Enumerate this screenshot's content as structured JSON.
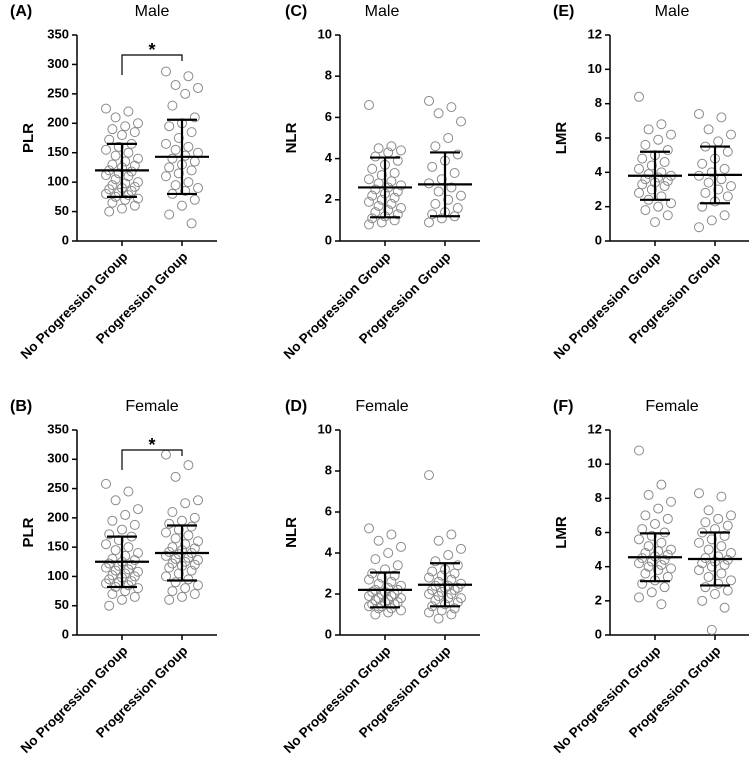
{
  "chart_data": [
    {
      "type": "strip",
      "panel_label": "(A)",
      "title": "Male",
      "y_label": "PLR",
      "annotation": "*",
      "categories": [
        "No Progression Group",
        "Progression Group"
      ],
      "ylim": [
        0,
        350
      ],
      "yticks": [
        0,
        50,
        100,
        150,
        200,
        250,
        300,
        350
      ],
      "groups": [
        {
          "mean": 120,
          "sd": 45,
          "values": [
            225,
            220,
            210,
            200,
            195,
            190,
            185,
            180,
            172,
            165,
            160,
            155,
            150,
            145,
            140,
            135,
            130,
            128,
            125,
            120,
            118,
            115,
            112,
            110,
            105,
            100,
            98,
            95,
            92,
            90,
            88,
            85,
            82,
            80,
            78,
            75,
            72,
            70,
            65,
            60,
            55,
            50
          ]
        },
        {
          "mean": 143,
          "sd": 63,
          "values": [
            288,
            280,
            265,
            260,
            250,
            230,
            210,
            200,
            195,
            185,
            175,
            165,
            160,
            155,
            150,
            145,
            140,
            135,
            130,
            125,
            120,
            115,
            110,
            100,
            95,
            90,
            85,
            80,
            70,
            60,
            45,
            30
          ]
        }
      ]
    },
    {
      "type": "strip",
      "panel_label": "(C)",
      "title": "Male",
      "y_label": "NLR",
      "categories": [
        "No Progression Group",
        "Progression Group"
      ],
      "ylim": [
        0,
        10
      ],
      "yticks": [
        0,
        2,
        4,
        6,
        8,
        10
      ],
      "groups": [
        {
          "mean": 2.6,
          "sd": 1.45,
          "values": [
            6.6,
            4.6,
            4.5,
            4.4,
            4.3,
            4.1,
            3.9,
            3.7,
            3.5,
            3.3,
            3.2,
            3.0,
            2.9,
            2.8,
            2.7,
            2.6,
            2.5,
            2.4,
            2.3,
            2.2,
            2.1,
            2.0,
            1.9,
            1.8,
            1.7,
            1.6,
            1.5,
            1.4,
            1.3,
            1.2,
            1.1,
            1.0,
            0.9,
            0.8
          ]
        },
        {
          "mean": 2.75,
          "sd": 1.55,
          "values": [
            6.8,
            6.5,
            6.2,
            5.8,
            5.0,
            4.6,
            4.2,
            3.9,
            3.6,
            3.3,
            3.0,
            2.8,
            2.6,
            2.4,
            2.2,
            2.0,
            1.8,
            1.6,
            1.4,
            1.3,
            1.2,
            1.1,
            0.9
          ]
        }
      ]
    },
    {
      "type": "strip",
      "panel_label": "(E)",
      "title": "Male",
      "y_label": "LMR",
      "categories": [
        "No Progression Group",
        "Progression Group"
      ],
      "ylim": [
        0,
        12
      ],
      "yticks": [
        0,
        2,
        4,
        6,
        8,
        10,
        12
      ],
      "groups": [
        {
          "mean": 3.8,
          "sd": 1.4,
          "values": [
            8.4,
            6.8,
            6.5,
            6.2,
            5.9,
            5.6,
            5.3,
            5.0,
            4.8,
            4.6,
            4.4,
            4.2,
            4.0,
            3.9,
            3.8,
            3.7,
            3.6,
            3.5,
            3.4,
            3.3,
            3.2,
            3.0,
            2.8,
            2.6,
            2.4,
            2.2,
            2.0,
            1.8,
            1.5,
            1.1
          ]
        },
        {
          "mean": 3.85,
          "sd": 1.65,
          "values": [
            7.4,
            7.2,
            6.5,
            6.2,
            5.8,
            5.5,
            5.2,
            4.8,
            4.5,
            4.2,
            4.0,
            3.8,
            3.6,
            3.4,
            3.2,
            3.0,
            2.8,
            2.6,
            2.3,
            2.0,
            1.5,
            1.2,
            0.8
          ]
        }
      ]
    },
    {
      "type": "strip",
      "panel_label": "(B)",
      "title": "Female",
      "y_label": "PLR",
      "annotation": "*",
      "categories": [
        "No Progression Group",
        "Progression Group"
      ],
      "ylim": [
        0,
        350
      ],
      "yticks": [
        0,
        50,
        100,
        150,
        200,
        250,
        300,
        350
      ],
      "groups": [
        {
          "mean": 125,
          "sd": 43,
          "values": [
            258,
            245,
            230,
            215,
            205,
            195,
            188,
            180,
            172,
            168,
            162,
            155,
            150,
            145,
            140,
            135,
            130,
            128,
            125,
            122,
            120,
            118,
            115,
            112,
            110,
            108,
            105,
            102,
            100,
            98,
            95,
            92,
            90,
            88,
            85,
            82,
            80,
            75,
            70,
            65,
            60,
            50
          ]
        },
        {
          "mean": 140,
          "sd": 47,
          "values": [
            308,
            290,
            270,
            230,
            225,
            210,
            200,
            195,
            190,
            185,
            180,
            175,
            170,
            165,
            160,
            155,
            150,
            148,
            145,
            142,
            140,
            138,
            135,
            132,
            130,
            128,
            125,
            122,
            120,
            118,
            115,
            110,
            105,
            100,
            95,
            90,
            85,
            80,
            75,
            70,
            65,
            60
          ]
        }
      ]
    },
    {
      "type": "strip",
      "panel_label": "(D)",
      "title": "Female",
      "y_label": "NLR",
      "categories": [
        "No Progression Group",
        "Progression Group"
      ],
      "ylim": [
        0,
        10
      ],
      "yticks": [
        0,
        2,
        4,
        6,
        8,
        10
      ],
      "groups": [
        {
          "mean": 2.2,
          "sd": 0.85,
          "values": [
            5.2,
            4.9,
            4.6,
            4.3,
            4.0,
            3.7,
            3.4,
            3.2,
            3.0,
            2.9,
            2.8,
            2.7,
            2.6,
            2.5,
            2.4,
            2.3,
            2.2,
            2.2,
            2.1,
            2.1,
            2.0,
            2.0,
            1.9,
            1.9,
            1.8,
            1.8,
            1.7,
            1.7,
            1.6,
            1.6,
            1.5,
            1.5,
            1.4,
            1.4,
            1.3,
            1.3,
            1.2,
            1.1,
            1.0
          ]
        },
        {
          "mean": 2.45,
          "sd": 1.05,
          "values": [
            7.8,
            4.9,
            4.6,
            4.2,
            3.9,
            3.6,
            3.4,
            3.2,
            3.1,
            3.0,
            2.9,
            2.8,
            2.7,
            2.6,
            2.5,
            2.4,
            2.4,
            2.3,
            2.3,
            2.2,
            2.2,
            2.1,
            2.0,
            2.0,
            1.9,
            1.8,
            1.8,
            1.7,
            1.6,
            1.5,
            1.4,
            1.3,
            1.2,
            1.1,
            1.0,
            0.8
          ]
        }
      ]
    },
    {
      "type": "strip",
      "panel_label": "(F)",
      "title": "Female",
      "y_label": "LMR",
      "categories": [
        "No Progression Group",
        "Progression Group"
      ],
      "ylim": [
        0,
        12
      ],
      "yticks": [
        0,
        2,
        4,
        6,
        8,
        10,
        12
      ],
      "groups": [
        {
          "mean": 4.55,
          "sd": 1.4,
          "values": [
            10.8,
            8.8,
            8.2,
            7.8,
            7.4,
            7.0,
            6.8,
            6.5,
            6.2,
            6.0,
            5.8,
            5.6,
            5.4,
            5.2,
            5.0,
            4.9,
            4.8,
            4.7,
            4.6,
            4.5,
            4.4,
            4.3,
            4.2,
            4.1,
            4.0,
            3.9,
            3.8,
            3.6,
            3.4,
            3.2,
            3.0,
            2.8,
            2.5,
            2.2,
            1.8
          ]
        },
        {
          "mean": 4.45,
          "sd": 1.55,
          "values": [
            8.3,
            8.1,
            7.3,
            7.0,
            6.8,
            6.6,
            6.4,
            6.2,
            6.0,
            5.8,
            5.6,
            5.4,
            5.2,
            5.0,
            4.8,
            4.6,
            4.5,
            4.4,
            4.3,
            4.2,
            4.1,
            4.0,
            3.8,
            3.6,
            3.4,
            3.2,
            3.0,
            2.8,
            2.6,
            2.4,
            2.0,
            1.6,
            0.3
          ]
        }
      ]
    }
  ]
}
